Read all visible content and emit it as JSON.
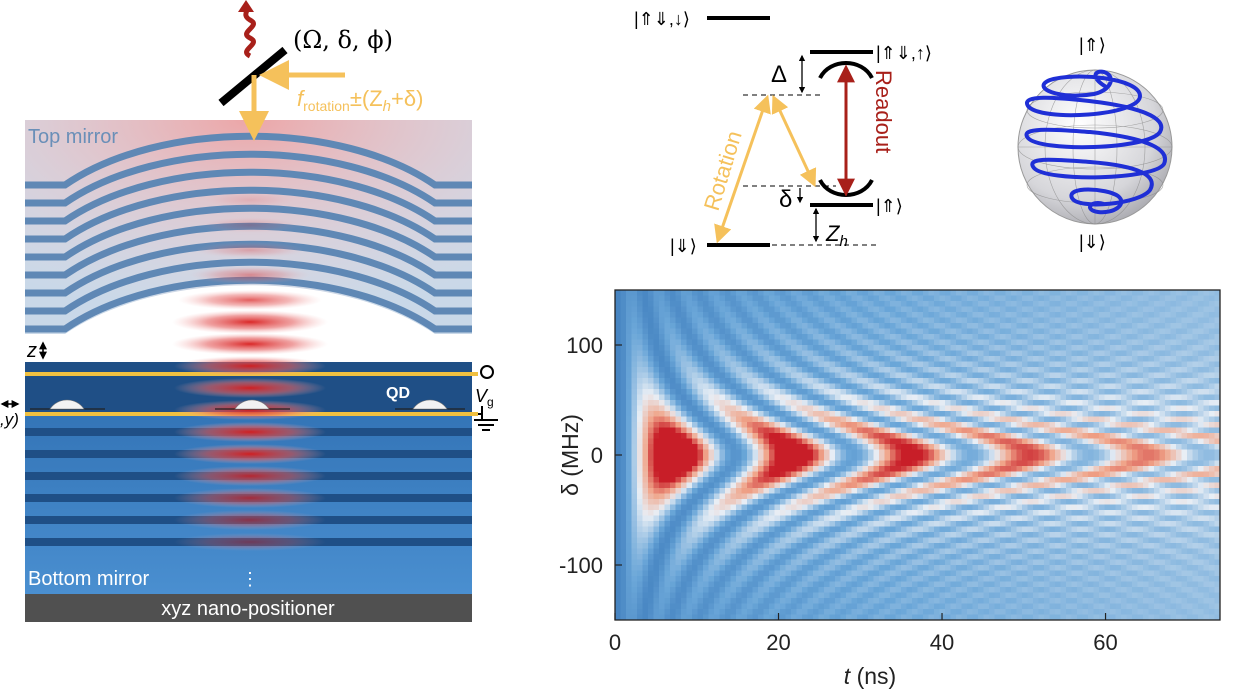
{
  "device": {
    "top_mirror": "Top mirror",
    "bottom_mirror": "Bottom mirror",
    "positioner": "xyz nano-positioner",
    "qd": "QD",
    "gate": "V",
    "gate_sub": "g",
    "z": "z",
    "xy": ",y)",
    "params": "(Ω, δ, ϕ)",
    "freq_main": "f",
    "freq_sub": "rotation",
    "freq_rest": "±(Z",
    "freq_h": "h",
    "freq_end": "+δ)",
    "dots": "⋮",
    "colors": {
      "top_mirror_bg": "#c9d8e8",
      "stripe": "#5f88b5",
      "bottom_bg": "#2f6eb0",
      "laser": "#f5c15b",
      "gate_line": "#f0c040"
    }
  },
  "levels": {
    "top_left": "|⇑⇓,↓⟩",
    "top_right": "|⇑⇓,↑⟩",
    "up": "|⇑⟩",
    "down": "|⇓⟩",
    "Delta": "Δ",
    "delta": "δ",
    "Zh": "Z",
    "Zh_sub": "h",
    "rotation": "Rotation",
    "readout": "Readout",
    "colors": {
      "rotation": "#f5c15b",
      "readout": "#a8201a"
    }
  },
  "bloch": {
    "north": "|⇑⟩",
    "south": "|⇓⟩",
    "trajectory_color": "#1f2fd6"
  },
  "chart_data": {
    "type": "heatmap",
    "xlabel_italic": "t",
    "xlabel_rest": " (ns)",
    "ylabel": "δ (MHz)",
    "xlim": [
      0,
      74
    ],
    "ylim": [
      -150,
      150
    ],
    "xticks": [
      "0",
      "20",
      "40",
      "60"
    ],
    "xtick_values": [
      0,
      20,
      40,
      60
    ],
    "yticks": [
      "100",
      "0",
      "-100"
    ],
    "ytick_values": [
      100,
      0,
      -100
    ],
    "rabi_peaks_t_ns": [
      7.5,
      22,
      36.5,
      51,
      65.5
    ],
    "colormap": [
      "#1d5ea8",
      "#6aa6d8",
      "#e8eef5",
      "#f0a58a",
      "#c81e28"
    ]
  }
}
